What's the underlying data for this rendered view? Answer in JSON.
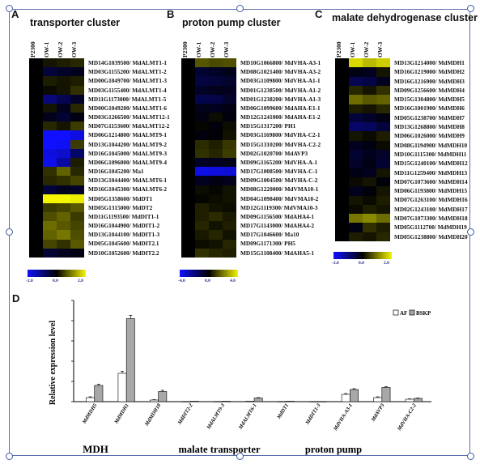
{
  "panels": {
    "A": {
      "letter": "A",
      "title": "transporter cluster",
      "columns": [
        "P2300",
        "OW-1",
        "OW-2",
        "OW-3"
      ],
      "genes": [
        "MD14G1039500/ MdALMT1-1",
        "MD03G1155200/ MdALMT1-2",
        "MD00G1049700/ MdALMT1-3",
        "MD03G1155400/ MdALMT1-4",
        "MD11G1173000/ MdALMT1-5",
        "MD00G1049200/ MdALMT1-6",
        "MD03G1266500/ MdALMT12-1",
        "MD07G1153600/ MdALMT12-2",
        "MD06G1214800/ MdALMT9-1",
        "MD13G1044200/ MdALMT9-2",
        "MD16G1045000/ MdALMT9-3",
        "MD06G1096000/ MdALMT9-4",
        "MD16G1045200/ Ma1",
        "MD13G1044400/ MdALMT6-1",
        "MD16G1045300/ MdALMT6-2",
        "MD05G1358600/ MdDT1",
        "MD05G1315000/ MdDT2",
        "MD11G1193500/ MdDIT1-1",
        "MD16G1044900/ MdDIT1-2",
        "MD13G1044100/ MdDIT1-3",
        "MD05G1045600/ MdDIT2.1",
        "MD10G1052600/ MdDIT2.2"
      ],
      "values": [
        [
          0,
          0.2,
          0.3,
          0.4
        ],
        [
          0,
          -0.6,
          -0.4,
          -0.3
        ],
        [
          0,
          0.3,
          0.2,
          0.3
        ],
        [
          0,
          0.1,
          0.2,
          0.5
        ],
        [
          0,
          -1.2,
          -0.8,
          -0.4
        ],
        [
          0,
          0.2,
          -0.3,
          0.4
        ],
        [
          0,
          -0.3,
          -0.5,
          -0.2
        ],
        [
          0,
          0.4,
          0.2,
          0.6
        ],
        [
          0,
          -2.6,
          -2.5,
          -2.2
        ],
        [
          0,
          -2.8,
          -2.4,
          0.6
        ],
        [
          0,
          -2.2,
          -2.0,
          -1.0
        ],
        [
          0,
          -2.3,
          -1.6,
          0.3
        ],
        [
          0,
          0.5,
          1.0,
          0.4
        ],
        [
          0,
          0.4,
          0.5,
          0.7
        ],
        [
          0,
          -0.6,
          -0.3,
          -0.4
        ],
        [
          0,
          2.6,
          2.7,
          2.4
        ],
        [
          0,
          0.6,
          0.7,
          0.9
        ],
        [
          0,
          0.8,
          1.0,
          0.6
        ],
        [
          0,
          1.1,
          0.9,
          0.7
        ],
        [
          0,
          1.0,
          1.2,
          0.8
        ],
        [
          0,
          0.7,
          0.5,
          0.9
        ],
        [
          0,
          -0.5,
          -0.3,
          -0.2
        ]
      ],
      "scale": [
        "-2.0",
        "0.0",
        "2.0"
      ]
    },
    "B": {
      "letter": "B",
      "title": "proton pump cluster",
      "columns": [
        "P2300",
        "OW-1",
        "OW-2",
        "OW-3"
      ],
      "genes": [
        "MD10G1066800/ MdVHA-A3-1",
        "MD08G1021400/ MdVHA-A3-2",
        "MD03G1109800/ MdVHA-A1-1",
        "MD01G1238500/ MdVHA-A1-2",
        "MD01G1238200/ MdVHA-A1-3",
        "MD06G1099600/ MdAHA-E1-1",
        "MD12G1241000/ MdAHA-E1-2",
        "MD15G1317200/ PH1",
        "MD03G1169800/ MdVHA-C2-1",
        "MD15G1310200/ MdVHA-C2-2",
        "MD02G1020700/ MdAVP3",
        "MD09G1165200/ MdVHA-A-1",
        "MD17G1008500/ MdVHA-C-1",
        "MD09G1004500/ MdVHA-C-2",
        "MD08G1220000/ MdVMA10-1",
        "MD04G1098400/ MdVMA10-2",
        "MD12G1119300/ MdVMA10-3",
        "MD09G1156500/ MdAHA4-1",
        "MD17G1143000/ MdAHA4-2",
        "MD17G1046600/ Ma10",
        "MD09G1171300/ PH5",
        "MD15G1108400/ MdAHA5-1"
      ],
      "values": [
        [
          0,
          1.4,
          1.2,
          1.3
        ],
        [
          0,
          -0.8,
          -0.6,
          -0.4
        ],
        [
          0,
          -1.0,
          -0.9,
          -0.7
        ],
        [
          0,
          -0.6,
          -0.4,
          -0.5
        ],
        [
          0,
          -1.2,
          -1.1,
          -0.7
        ],
        [
          0,
          -0.4,
          -0.5,
          -0.3
        ],
        [
          0,
          -0.3,
          0.2,
          -0.2
        ],
        [
          0,
          0.1,
          -0.2,
          0.2
        ],
        [
          0,
          -0.2,
          -0.1,
          0.3
        ],
        [
          0,
          0.7,
          0.5,
          0.9
        ],
        [
          0,
          0.8,
          0.6,
          1.0
        ],
        [
          0,
          -0.6,
          -0.5,
          -0.4
        ],
        [
          0,
          -3.6,
          -3.5,
          -3.4
        ],
        [
          0,
          -0.5,
          -0.3,
          -0.4
        ],
        [
          0,
          0.2,
          0.1,
          0.3
        ],
        [
          0,
          0.1,
          0.2,
          0.3
        ],
        [
          0,
          0.5,
          0.3,
          0.2
        ],
        [
          0,
          0.5,
          0.7,
          0.4
        ],
        [
          0,
          0.6,
          0.3,
          0.5
        ],
        [
          0,
          0.4,
          0.6,
          0.3
        ],
        [
          0,
          0.2,
          0.3,
          0.6
        ],
        [
          0,
          0.8,
          0.6,
          0.5
        ]
      ],
      "scale": [
        "-4.0",
        "0.0",
        "4.0"
      ]
    },
    "C": {
      "letter": "C",
      "title": "malate dehydrogenase cluster",
      "columns": [
        "P2300",
        "OW-1",
        "OW-2",
        "OW-3"
      ],
      "genes": [
        "MD13G1214000/ MdMDH1",
        "MD16G1219000/ MdMDH2",
        "MD16G1216900/ MdMDH3",
        "MD09G1256600/ MdMDH4",
        "MD15G1304800/ MdMDH5",
        "MD16G1001900/ MdMDH6",
        "MD05G1238700/ MdMDH7",
        "MD13G1268800/ MdMDH8",
        "MD06G1026000/ MdMDH9",
        "MD08G1194900/ MdMDH10",
        "MD10G1115300/ MdMDH11",
        "MD15G1240100/ MdMDH12",
        "MD11G1259400/ MdMDH13",
        "MD07G1073600/ MdMDH14",
        "MD06G1193800/ MdMDH15",
        "MD07G1263100/ MdMDH16",
        "MD02G1243100/ MdMDH17",
        "MD07G1073300/ MdMDH18",
        "MD05G1112700/ MdMDH19",
        "MD05G1238800/ MdMDH20"
      ],
      "values": [
        [
          0,
          2.2,
          1.9,
          2.1
        ],
        [
          0,
          -0.2,
          -0.3,
          0.2
        ],
        [
          0,
          -0.8,
          -0.7,
          -0.3
        ],
        [
          0,
          0.4,
          0.2,
          0.5
        ],
        [
          0,
          1.1,
          0.9,
          1.0
        ],
        [
          0,
          0.3,
          0.2,
          0.4
        ],
        [
          0,
          -0.6,
          -0.4,
          -0.2
        ],
        [
          0,
          -1.0,
          -0.9,
          -0.6
        ],
        [
          0,
          0.2,
          0.1,
          0.3
        ],
        [
          0,
          -0.3,
          -0.2,
          0.1
        ],
        [
          0,
          -0.5,
          -0.3,
          -0.4
        ],
        [
          0,
          -0.4,
          -0.2,
          -0.5
        ],
        [
          0,
          -0.2,
          -0.3,
          0.2
        ],
        [
          0,
          0.1,
          0.2,
          -0.1
        ],
        [
          0,
          -0.3,
          -0.1,
          0.2
        ],
        [
          0,
          0.2,
          0.1,
          0.3
        ],
        [
          0,
          0.1,
          0.3,
          0.2
        ],
        [
          0,
          1.2,
          1.4,
          1.1
        ],
        [
          0,
          -0.2,
          0.5,
          0.3
        ],
        [
          0,
          0.3,
          0.2,
          0.4
        ]
      ],
      "scale": [
        "-2.0",
        "0.0",
        "2.0"
      ]
    }
  },
  "bar_panel": {
    "letter": "D",
    "group_labels": [
      "MDH",
      "malate transporter",
      "proton pump"
    ]
  },
  "colors": {
    "low": "#1010ff",
    "mid": "#000000",
    "high": "#f5f500",
    "af": "#ffffff",
    "bskp": "#a8a8a8",
    "frame": "#5a6fb0"
  },
  "chart_data": {
    "type": "bar",
    "ylabel": "Relative expression level",
    "categories": [
      "MdMDH5",
      "MdMDH1",
      "MdMDH18",
      "MdDIT2-2",
      "MdALMT9-3",
      "MdALMT6-1",
      "MdDT1",
      "MdDIT1-3",
      "MdVHA-A3-1",
      "MdAVP3",
      "MdVHA-C2-2"
    ],
    "series": [
      {
        "name": "AF",
        "values": [
          0.1,
          0.7,
          0.04,
          0.005,
          0.005,
          0.01,
          0.005,
          0.005,
          0.18,
          0.1,
          0.06
        ]
      },
      {
        "name": "BSKP",
        "values": [
          0.4,
          2.05,
          0.25,
          0.01,
          0.01,
          0.09,
          0.01,
          0.005,
          0.3,
          0.35,
          0.08
        ]
      }
    ],
    "errors": [
      [
        0.02,
        0.05,
        0.01,
        0,
        0,
        0,
        0,
        0,
        0.02,
        0.02,
        0.01
      ],
      [
        0.03,
        0.08,
        0.03,
        0,
        0,
        0.01,
        0,
        0,
        0.02,
        0.02,
        0.01
      ]
    ],
    "ylim": [
      0,
      2.5
    ]
  }
}
